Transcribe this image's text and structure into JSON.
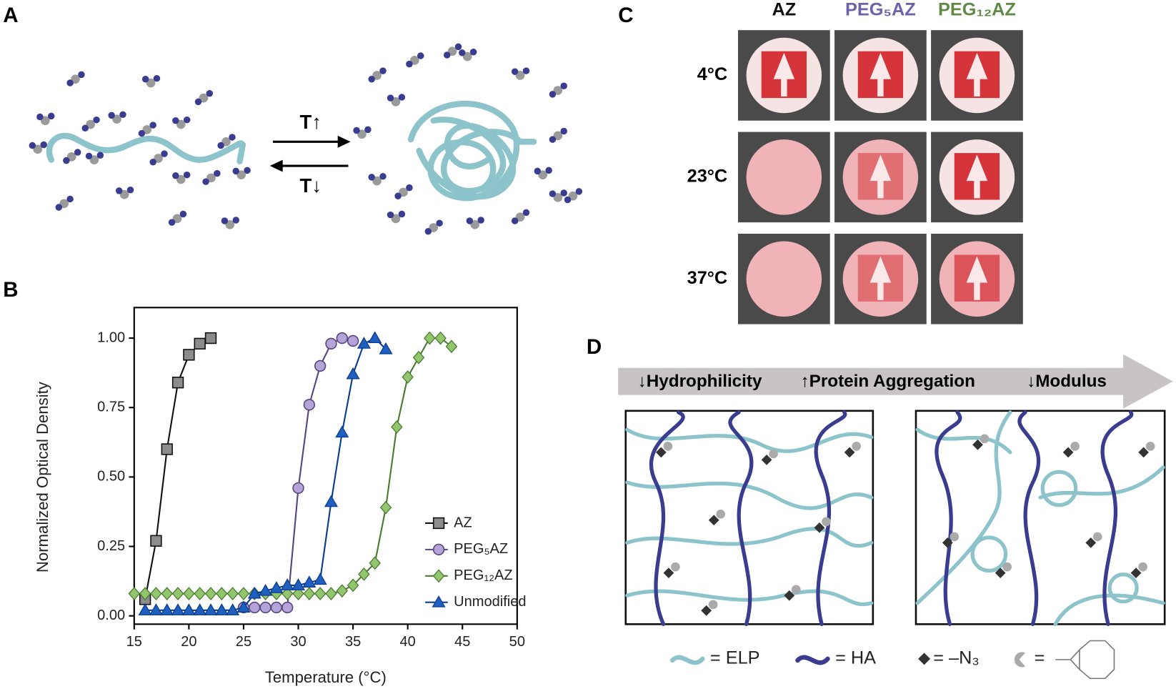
{
  "panels": {
    "A": {
      "label": "A",
      "heat": "T↑",
      "cool": "T↓"
    },
    "B": {
      "label": "B"
    },
    "C": {
      "label": "C",
      "columns": [
        "AZ",
        "PEG₅AZ",
        "PEG₁₂AZ"
      ],
      "rows": [
        "4°C",
        "23°C",
        "37°C"
      ]
    },
    "D": {
      "label": "D",
      "arrow_items": [
        "↓Hydrophilicity",
        "↑Protein Aggregation",
        "↓Modulus"
      ],
      "legend": [
        "= ELP",
        "= HA",
        "= –N₃",
        "="
      ]
    }
  },
  "chart_data": {
    "type": "line",
    "xlabel": "Temperature (°C)",
    "ylabel": "Normalized Optical Density",
    "xlim": [
      15,
      50
    ],
    "ylim": [
      -0.03,
      1.11
    ],
    "xticks": [
      15,
      20,
      25,
      30,
      35,
      40,
      45,
      50
    ],
    "yticks": [
      {
        "value": 0,
        "label": "0.00"
      },
      {
        "value": 0.25,
        "label": "0.25"
      },
      {
        "value": 0.5,
        "label": "0.50"
      },
      {
        "value": 0.75,
        "label": "0.75"
      },
      {
        "value": 1,
        "label": "1.00"
      }
    ],
    "legend": "lower right",
    "series": [
      {
        "name": "AZ",
        "color": "#111111",
        "fill": "#8c8c8c",
        "marker": "square",
        "x": [
          16,
          17,
          18,
          19,
          20,
          21,
          22
        ],
        "values": [
          0.06,
          0.27,
          0.6,
          0.84,
          0.94,
          0.98,
          1.0
        ]
      },
      {
        "name": "PEG₅AZ",
        "color": "#55467f",
        "fill": "#b4a4d8",
        "marker": "circle",
        "x": [
          25,
          26,
          27,
          28,
          29,
          30,
          31,
          32,
          33,
          34,
          35
        ],
        "values": [
          0.03,
          0.03,
          0.03,
          0.03,
          0.03,
          0.46,
          0.76,
          0.9,
          0.98,
          1.0,
          0.99
        ]
      },
      {
        "name": "PEG₁₂AZ",
        "color": "#4a7a30",
        "fill": "#93c46e",
        "marker": "diamond",
        "x": [
          15,
          16,
          17,
          18,
          19,
          20,
          21,
          22,
          23,
          24,
          25,
          26,
          27,
          28,
          29,
          30,
          31,
          32,
          33,
          34,
          35,
          36,
          37,
          38,
          39,
          40,
          41,
          42,
          43,
          44
        ],
        "values": [
          0.08,
          0.08,
          0.08,
          0.08,
          0.08,
          0.08,
          0.08,
          0.08,
          0.08,
          0.08,
          0.08,
          0.08,
          0.08,
          0.08,
          0.08,
          0.08,
          0.08,
          0.08,
          0.08,
          0.09,
          0.11,
          0.15,
          0.19,
          0.39,
          0.68,
          0.86,
          0.93,
          1.0,
          1.0,
          0.97
        ]
      },
      {
        "name": "Unmodified",
        "color": "#0b3c8c",
        "fill": "#1f5fc0",
        "marker": "triangle",
        "x": [
          16,
          17,
          18,
          19,
          20,
          21,
          22,
          23,
          24,
          25,
          26,
          27,
          28,
          29,
          30,
          31,
          32,
          33,
          34,
          35,
          36,
          37,
          38
        ],
        "values": [
          0.02,
          0.02,
          0.02,
          0.02,
          0.02,
          0.02,
          0.02,
          0.02,
          0.02,
          0.03,
          0.08,
          0.09,
          0.1,
          0.11,
          0.11,
          0.12,
          0.13,
          0.41,
          0.66,
          0.87,
          0.98,
          1.0,
          0.96
        ]
      }
    ]
  }
}
